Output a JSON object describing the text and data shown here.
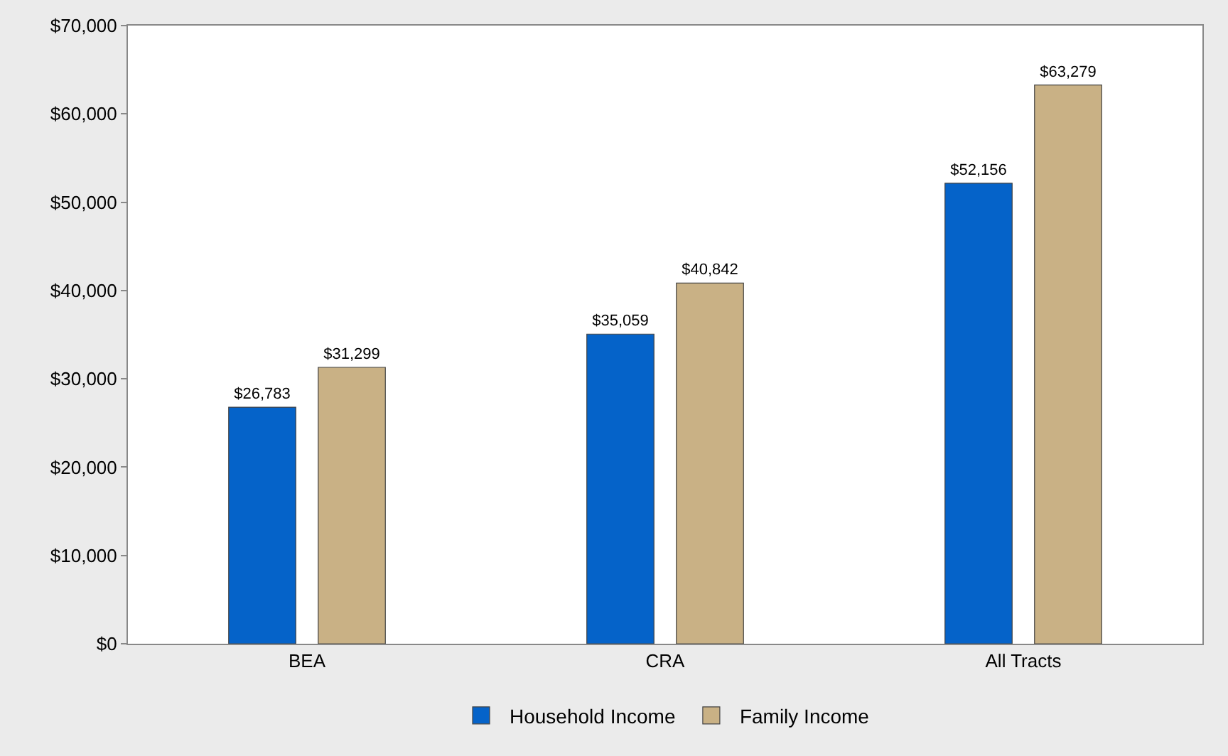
{
  "chart_data": {
    "type": "bar",
    "categories": [
      "BEA",
      "CRA",
      "All Tracts"
    ],
    "series": [
      {
        "name": "Household Income",
        "color": "#0563c9",
        "values": [
          26783,
          35059,
          52156
        ],
        "value_labels": [
          "$26,783",
          "$35,059",
          "$52,156"
        ]
      },
      {
        "name": "Family Income",
        "color": "#c9b185",
        "values": [
          31299,
          40842,
          63279
        ],
        "value_labels": [
          "$31,299",
          "$40,842",
          "$63,279"
        ]
      }
    ],
    "ylim": [
      0,
      70000
    ],
    "yticks": [
      {
        "value": 0,
        "label": "$0"
      },
      {
        "value": 10000,
        "label": "$10,000"
      },
      {
        "value": 20000,
        "label": "$20,000"
      },
      {
        "value": 30000,
        "label": "$30,000"
      },
      {
        "value": 40000,
        "label": "$40,000"
      },
      {
        "value": 50000,
        "label": "$50,000"
      },
      {
        "value": 60000,
        "label": "$60,000"
      },
      {
        "value": 70000,
        "label": "$70,000"
      }
    ],
    "legend": "bottom"
  }
}
